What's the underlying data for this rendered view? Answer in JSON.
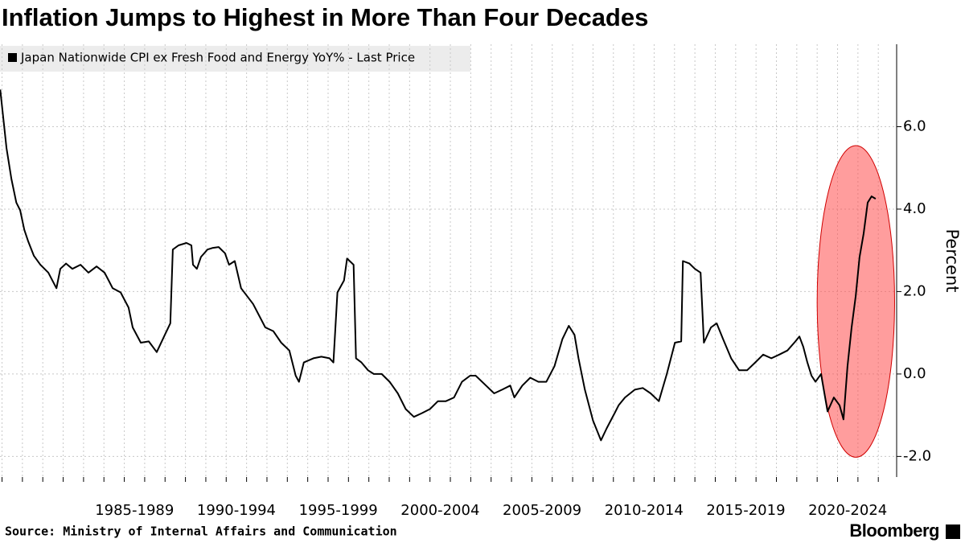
{
  "chart_data": {
    "type": "line",
    "title": "Inflation Jumps to Highest in More Than Four Decades",
    "y_axis_label": "Percent",
    "source": "Source: Ministry of Internal Affairs and Communication",
    "brand": "Bloomberg",
    "xlim": [
      1980.9,
      2024.9
    ],
    "ylim": [
      -2.5,
      8
    ],
    "yticks": [
      {
        "value": -2,
        "label": "-2.0"
      },
      {
        "value": 0,
        "label": "0.0"
      },
      {
        "value": 2,
        "label": "2.0"
      },
      {
        "value": 4,
        "label": "4.0"
      },
      {
        "value": 6,
        "label": "6.0"
      }
    ],
    "xticks": [
      {
        "value": 1987.5,
        "label": "1985-1989"
      },
      {
        "value": 1992.5,
        "label": "1990-1994"
      },
      {
        "value": 1997.5,
        "label": "1995-1999"
      },
      {
        "value": 2002.5,
        "label": "2000-2004"
      },
      {
        "value": 2007.5,
        "label": "2005-2009"
      },
      {
        "value": 2012.5,
        "label": "2010-2014"
      },
      {
        "value": 2017.5,
        "label": "2015-2019"
      },
      {
        "value": 2022.5,
        "label": "2020-2024"
      }
    ],
    "xminor": [
      1981,
      1982,
      1983,
      1984,
      1985,
      1986,
      1987,
      1988,
      1989,
      1990,
      1991,
      1992,
      1993,
      1994,
      1995,
      1996,
      1997,
      1998,
      1999,
      2000,
      2001,
      2002,
      2003,
      2004,
      2005,
      2006,
      2007,
      2008,
      2009,
      2010,
      2011,
      2012,
      2013,
      2014,
      2015,
      2016,
      2017,
      2018,
      2019,
      2020,
      2021,
      2022,
      2023,
      2024
    ],
    "grid": true,
    "highlight": {
      "cx": 2022.9,
      "cy": 1.76,
      "rx": 1.9,
      "ry": 3.78,
      "color": "#ff4d4d"
    },
    "x": [
      1980.91,
      1981.22,
      1981.46,
      1981.7,
      1981.89,
      1982.09,
      1982.29,
      1982.56,
      1982.88,
      1983.27,
      1983.67,
      1983.86,
      1984.14,
      1984.45,
      1984.85,
      1985.24,
      1985.64,
      1986.03,
      1986.23,
      1986.43,
      1986.82,
      1987.21,
      1987.41,
      1987.81,
      1988.2,
      1988.59,
      1988.99,
      1989.26,
      1989.38,
      1989.66,
      1990.05,
      1990.29,
      1990.37,
      1990.56,
      1990.76,
      1991.08,
      1991.35,
      1991.63,
      1991.94,
      1992.14,
      1992.42,
      1992.73,
      1993.32,
      1993.92,
      1994.31,
      1994.7,
      1995.1,
      1995.41,
      1995.57,
      1995.81,
      1996.28,
      1996.67,
      1997.07,
      1997.26,
      1997.46,
      1997.78,
      1997.93,
      1998.25,
      1998.37,
      1998.64,
      1998.96,
      1999.24,
      1999.63,
      2000.02,
      2000.42,
      2000.81,
      2001.21,
      2001.6,
      2002.0,
      2002.39,
      2002.78,
      2003.18,
      2003.57,
      2003.97,
      2004.24,
      2004.75,
      2005.15,
      2005.54,
      2005.94,
      2006.14,
      2006.53,
      2006.92,
      2007.32,
      2007.71,
      2008.11,
      2008.5,
      2008.81,
      2009.09,
      2009.29,
      2009.6,
      2010.0,
      2010.39,
      2010.67,
      2011.06,
      2011.26,
      2011.57,
      2012.05,
      2012.44,
      2012.83,
      2013.23,
      2013.62,
      2014.02,
      2014.33,
      2014.41,
      2014.73,
      2015.0,
      2015.28,
      2015.44,
      2015.79,
      2016.07,
      2016.38,
      2016.78,
      2017.17,
      2017.56,
      2017.96,
      2018.35,
      2018.75,
      2019.14,
      2019.54,
      2019.93,
      2020.13,
      2020.32,
      2020.52,
      2020.72,
      2020.92,
      2021.19,
      2021.51,
      2021.82,
      2022.1,
      2022.29,
      2022.49,
      2022.69,
      2022.89,
      2023.08,
      2023.28,
      2023.48,
      2023.67,
      2023.87
    ],
    "series": [
      {
        "name": "Japan Nationwide CPI ex Fresh Food and Energy YoY% - Last Price",
        "color": "#000000",
        "values": [
          6.9,
          5.48,
          4.73,
          4.16,
          3.97,
          3.5,
          3.21,
          2.87,
          2.65,
          2.46,
          2.08,
          2.55,
          2.68,
          2.55,
          2.65,
          2.46,
          2.61,
          2.46,
          2.27,
          2.08,
          1.98,
          1.61,
          1.13,
          0.76,
          0.79,
          0.53,
          0.95,
          1.23,
          3.02,
          3.12,
          3.18,
          3.12,
          2.65,
          2.55,
          2.84,
          3.02,
          3.06,
          3.08,
          2.93,
          2.65,
          2.74,
          2.08,
          1.7,
          1.13,
          1.04,
          0.76,
          0.57,
          -0.04,
          -0.19,
          0.28,
          0.38,
          0.42,
          0.38,
          0.28,
          1.98,
          2.27,
          2.8,
          2.65,
          0.38,
          0.28,
          0.09,
          0,
          0,
          -0.19,
          -0.47,
          -0.85,
          -1.04,
          -0.95,
          -0.85,
          -0.66,
          -0.66,
          -0.57,
          -0.19,
          -0.04,
          -0.04,
          -0.28,
          -0.47,
          -0.38,
          -0.28,
          -0.57,
          -0.28,
          -0.09,
          -0.19,
          -0.19,
          0.19,
          0.85,
          1.17,
          0.95,
          0.38,
          -0.38,
          -1.13,
          -1.61,
          -1.32,
          -0.95,
          -0.76,
          -0.57,
          -0.38,
          -0.34,
          -0.47,
          -0.66,
          0,
          0.76,
          0.79,
          2.74,
          2.68,
          2.55,
          2.46,
          0.76,
          1.13,
          1.23,
          0.85,
          0.38,
          0.09,
          0.09,
          0.28,
          0.47,
          0.38,
          0.47,
          0.57,
          0.79,
          0.91,
          0.66,
          0.28,
          -0.04,
          -0.19,
          0,
          -0.91,
          -0.57,
          -0.76,
          -1.1,
          0.19,
          1.13,
          1.89,
          2.84,
          3.4,
          4.16,
          4.31,
          4.25
        ]
      }
    ]
  }
}
